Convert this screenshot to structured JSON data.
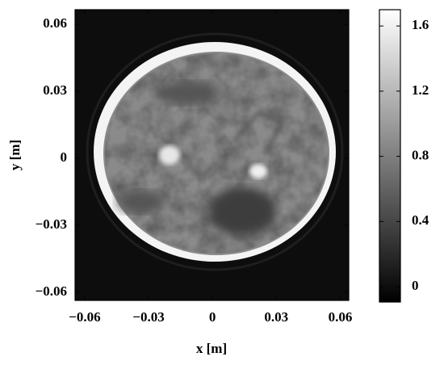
{
  "chart_data": {
    "type": "image",
    "xlabel": "x [m]",
    "ylabel": "y [m]",
    "xlim": [
      -0.0645,
      0.064
    ],
    "ylim": [
      -0.0636,
      0.0665
    ],
    "xticks": [
      {
        "value": -0.06,
        "label": "−0.06"
      },
      {
        "value": -0.03,
        "label": "−0.03"
      },
      0,
      0.03,
      0.06
    ],
    "yticks": [
      {
        "value": -0.06,
        "label": "−0.06"
      },
      {
        "value": -0.03,
        "label": "−0.03"
      },
      0,
      0.03,
      0.06
    ],
    "colorbar": {
      "clim": [
        -0.094,
        1.7
      ],
      "ticks": [
        0,
        0.4,
        0.8,
        1.2,
        1.6
      ],
      "colormap": "gray"
    }
  }
}
